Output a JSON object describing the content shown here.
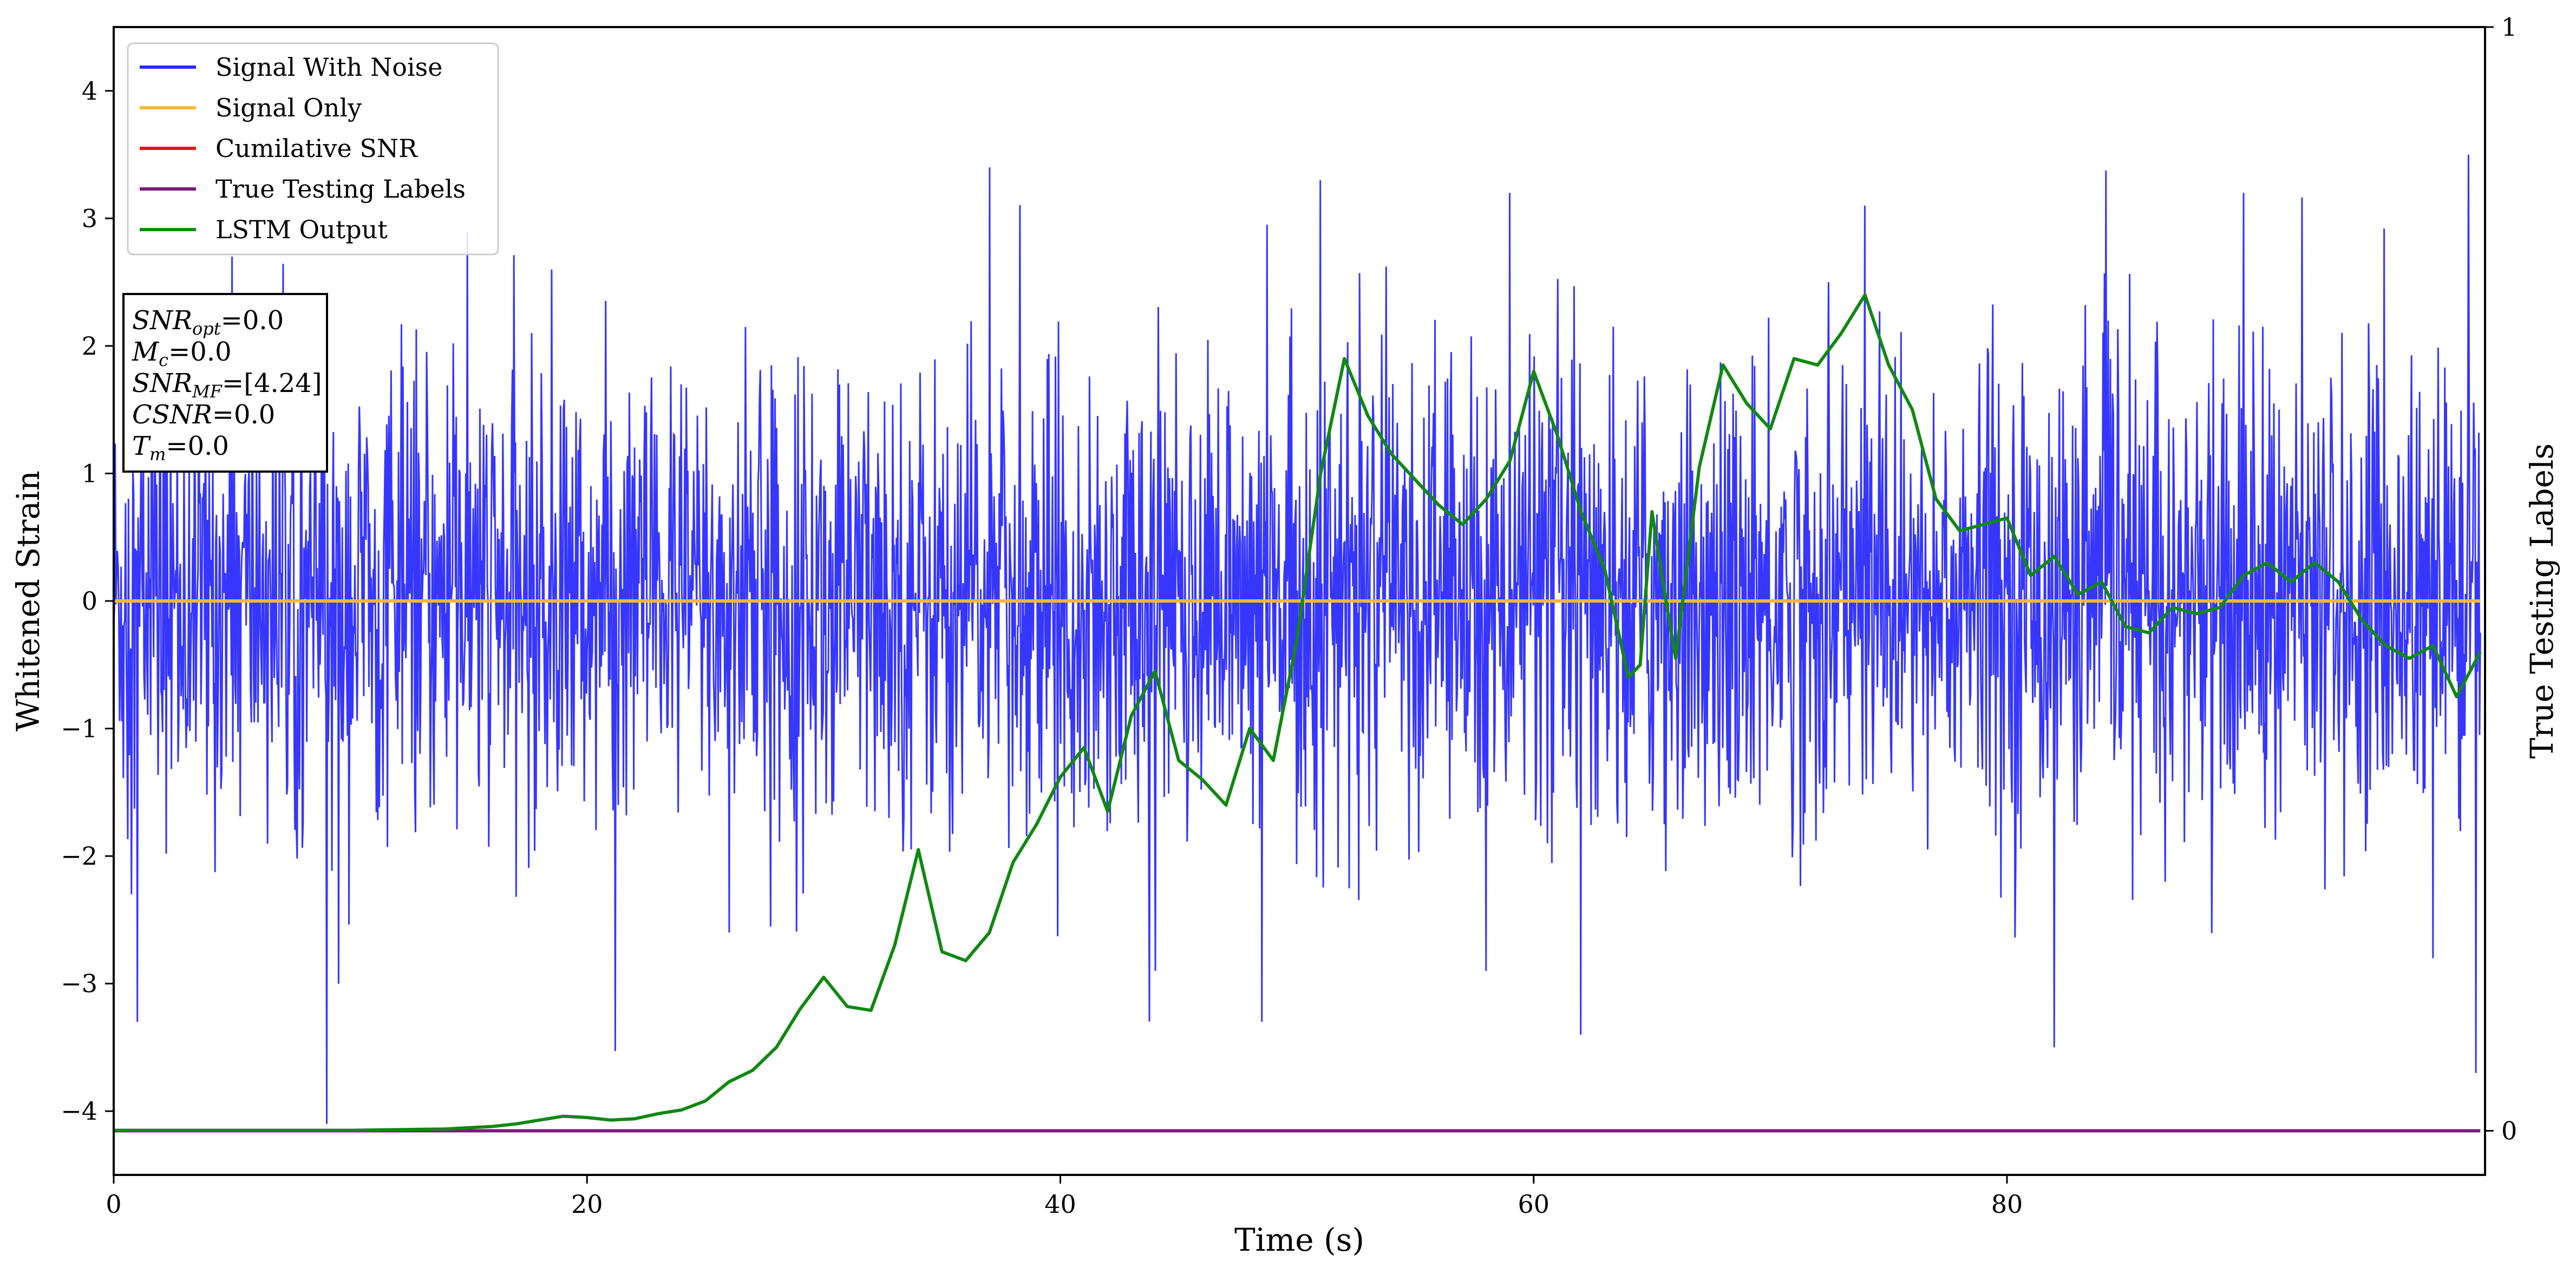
{
  "chart_data": {
    "type": "line",
    "xlabel": "Time (s)",
    "ylabel": "Whitened Strain",
    "y2label": "True Testing Labels",
    "xlim": [
      0,
      100.2
    ],
    "ylim": [
      -4.5,
      4.5
    ],
    "y2lim": [
      -0.04,
      1.0
    ],
    "xticks": [
      0,
      20,
      40,
      60,
      80
    ],
    "yticks": [
      -4,
      -3,
      -2,
      -1,
      0,
      1,
      2,
      3,
      4
    ],
    "y2ticks": [
      0,
      1
    ],
    "xtick_labels": [
      "0",
      "20",
      "40",
      "60",
      "80"
    ],
    "ytick_labels": [
      "−4",
      "−3",
      "−2",
      "−1",
      "0",
      "1",
      "2",
      "3",
      "4"
    ],
    "y2tick_labels": [
      "0",
      "1"
    ],
    "legend": {
      "placement": "upper-left",
      "entries": [
        {
          "label": "Signal With Noise",
          "color": "#2b2bff"
        },
        {
          "label": "Signal Only",
          "color": "#ffb733"
        },
        {
          "label": "Cumilative SNR",
          "color": "#ee1111"
        },
        {
          "label": "True Testing Labels",
          "color": "#7a1a7a"
        },
        {
          "label": "LSTM Output",
          "color": "#118811"
        }
      ]
    },
    "annotation": {
      "lines": [
        {
          "main": "SNR",
          "sub": "opt",
          "value": "=0.0"
        },
        {
          "main": "M",
          "sub": "c",
          "value": "=0.0"
        },
        {
          "main": "SNR",
          "sub": "MF",
          "value": "=[4.24]"
        },
        {
          "main": "CSNR",
          "sub": "",
          "value": "=0.0"
        },
        {
          "main": "T",
          "sub": "m",
          "value": "=0.0"
        }
      ]
    },
    "series": [
      {
        "name": "Signal With Noise",
        "axis": "left",
        "color": "#2b2bff",
        "style": "noise",
        "x_range": [
          0,
          100
        ],
        "typical_band": [
          -1.5,
          1.7
        ],
        "extremes": [
          [
            1.0,
            -3.3
          ],
          [
            5.0,
            2.7
          ],
          [
            9.0,
            -4.1
          ],
          [
            9.5,
            -3.0
          ],
          [
            18.5,
            2.6
          ],
          [
            26.0,
            -2.6
          ],
          [
            37.0,
            3.4
          ],
          [
            44.0,
            -2.9
          ],
          [
            48.5,
            -3.3
          ],
          [
            51.0,
            3.3
          ],
          [
            58.0,
            -2.9
          ],
          [
            59.0,
            3.2
          ],
          [
            62.0,
            -3.4
          ],
          [
            74.0,
            3.1
          ],
          [
            82.0,
            -3.5
          ],
          [
            90.0,
            3.2
          ],
          [
            98.0,
            -2.8
          ],
          [
            99.5,
            3.5
          ],
          [
            99.8,
            -3.7
          ]
        ]
      },
      {
        "name": "Signal Only",
        "axis": "left",
        "color": "#ffb733",
        "x": [
          0,
          100
        ],
        "y": [
          0,
          0
        ]
      },
      {
        "name": "True Testing Labels",
        "axis": "right",
        "color": "#7a1a7a",
        "x": [
          0,
          100
        ],
        "y": [
          0,
          0
        ]
      },
      {
        "name": "LSTM Output",
        "axis": "left",
        "color": "#118811",
        "x": [
          0,
          10,
          14,
          16,
          17,
          18,
          19,
          20,
          21,
          22,
          23,
          24,
          25,
          26,
          27,
          28,
          29,
          30,
          31,
          32,
          33,
          34,
          35,
          36,
          37,
          38,
          39,
          40,
          41,
          42,
          43,
          44,
          45,
          46,
          47,
          48,
          49,
          50,
          51,
          52,
          53,
          54,
          55,
          56,
          57,
          58,
          59,
          60,
          61,
          62,
          63,
          64,
          64.5,
          65,
          65.5,
          66,
          67,
          68,
          69,
          70,
          71,
          72,
          73,
          74,
          75,
          76,
          77,
          78,
          79,
          80,
          81,
          82,
          83,
          84,
          85,
          86,
          87,
          88,
          89,
          90,
          91,
          92,
          93,
          94,
          95,
          96,
          97,
          98,
          99,
          100
        ],
        "y": [
          -4.15,
          -4.15,
          -4.14,
          -4.12,
          -4.1,
          -4.07,
          -4.04,
          -4.05,
          -4.07,
          -4.06,
          -4.02,
          -3.99,
          -3.92,
          -3.77,
          -3.68,
          -3.5,
          -3.2,
          -2.95,
          -3.18,
          -3.21,
          -2.7,
          -1.95,
          -2.75,
          -2.82,
          -2.6,
          -2.05,
          -1.75,
          -1.38,
          -1.15,
          -1.65,
          -0.9,
          -0.55,
          -1.25,
          -1.4,
          -1.6,
          -1.0,
          -1.25,
          -0.3,
          1.0,
          1.9,
          1.45,
          1.15,
          0.95,
          0.75,
          0.6,
          0.8,
          1.1,
          1.8,
          1.3,
          0.7,
          0.25,
          -0.6,
          -0.5,
          0.7,
          0.1,
          -0.45,
          1.05,
          1.85,
          1.55,
          1.35,
          1.9,
          1.85,
          2.1,
          2.4,
          1.85,
          1.5,
          0.8,
          0.55,
          0.6,
          0.65,
          0.2,
          0.35,
          0.05,
          0.15,
          -0.2,
          -0.25,
          -0.05,
          -0.1,
          -0.05,
          0.2,
          0.3,
          0.15,
          0.3,
          0.15,
          -0.15,
          -0.35,
          -0.45,
          -0.35,
          -0.75,
          -0.4
        ]
      }
    ]
  }
}
